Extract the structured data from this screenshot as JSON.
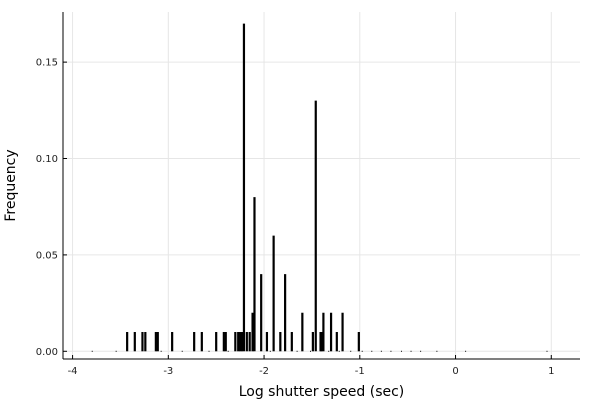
{
  "chart_data": {
    "type": "bar",
    "title": "",
    "xlabel": "Log shutter speed (sec)",
    "ylabel": "Frequency",
    "xlim": [
      -4.1,
      1.3
    ],
    "ylim": [
      -0.004,
      0.176
    ],
    "xticks": [
      -4,
      -3,
      -2,
      -1,
      0,
      1
    ],
    "yticks": [
      0.0,
      0.05,
      0.1,
      0.15
    ],
    "ytick_labels": [
      "0.00",
      "0.05",
      "0.10",
      "0.15"
    ],
    "grid": true,
    "legend": "none",
    "x": [
      -3.43,
      -3.35,
      -3.27,
      -3.24,
      -3.13,
      -3.11,
      -2.96,
      -2.73,
      -2.65,
      -2.5,
      -2.42,
      -2.4,
      -2.3,
      -2.27,
      -2.25,
      -2.23,
      -2.21,
      -2.18,
      -2.15,
      -2.12,
      -2.1,
      -2.03,
      -1.97,
      -1.9,
      -1.83,
      -1.78,
      -1.71,
      -1.6,
      -1.49,
      -1.46,
      -1.41,
      -1.4,
      -1.38,
      -1.3,
      -1.24,
      -1.18,
      -1.01
    ],
    "values": [
      0.01,
      0.01,
      0.01,
      0.01,
      0.01,
      0.01,
      0.01,
      0.01,
      0.01,
      0.01,
      0.01,
      0.01,
      0.01,
      0.01,
      0.01,
      0.01,
      0.17,
      0.01,
      0.01,
      0.02,
      0.08,
      0.04,
      0.01,
      0.06,
      0.01,
      0.04,
      0.01,
      0.02,
      0.01,
      0.13,
      0.01,
      0.01,
      0.02,
      0.02,
      0.01,
      0.02,
      0.01
    ],
    "zero_x": [
      -3.8,
      -3.55,
      -3.08,
      -2.86,
      -2.58,
      -2.38,
      -1.94,
      -1.66,
      -1.52,
      -1.33,
      -1.22,
      -1.1,
      -0.98,
      -0.88,
      -0.78,
      -0.68,
      -0.57,
      -0.47,
      -0.37,
      -0.2,
      0.1,
      0.95
    ]
  }
}
